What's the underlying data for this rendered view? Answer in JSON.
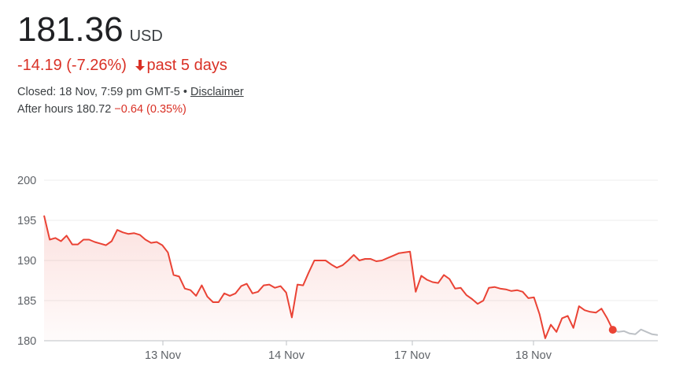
{
  "quote": {
    "price": "181.36",
    "currency": "USD",
    "change": "-14.19 (-7.26%)",
    "period": "past 5 days",
    "closed_label": "Closed: 18 Nov, 7:59 pm GMT-5",
    "separator": "•",
    "disclaimer": "Disclaimer",
    "after_hours_label": "After hours 180.72",
    "after_hours_change": "−0.64 (0.35%)"
  },
  "colors": {
    "line": "#ea4335",
    "after_hours_line": "#bdc1c6",
    "marker": "#ea4335",
    "down": "#d93025"
  },
  "chart_data": {
    "type": "line",
    "ylim": [
      180,
      200
    ],
    "yticks": [
      180,
      185,
      190,
      195,
      200
    ],
    "xticks": [
      "13 Nov",
      "14 Nov",
      "17 Nov",
      "18 Nov"
    ],
    "grid": true,
    "series": [
      {
        "values": [
          195.6,
          192.6,
          192.8,
          192.4,
          193.1,
          192.0,
          192.0,
          192.6,
          192.6,
          192.3,
          192.1,
          191.9,
          192.4,
          193.8,
          193.5,
          193.3,
          193.4,
          193.2,
          192.6,
          192.2,
          192.3,
          191.9,
          191.0,
          188.2,
          188.0,
          186.5,
          186.3,
          185.6,
          186.9,
          185.5,
          184.8,
          184.8,
          185.9,
          185.6,
          185.9,
          186.8,
          187.1,
          185.9,
          186.1,
          186.9,
          187.0,
          186.6,
          186.8,
          186.0,
          182.9,
          187.0,
          186.9,
          188.5,
          190.0,
          190.0,
          190.0,
          189.5,
          189.1,
          189.4,
          190.0,
          190.7,
          190.0,
          190.2,
          190.2,
          189.9,
          190.0,
          190.3,
          190.6,
          190.9,
          191.0,
          191.1,
          186.1,
          188.1,
          187.6,
          187.3,
          187.2,
          188.2,
          187.7,
          186.5,
          186.6,
          185.7,
          185.2,
          184.6,
          185.0,
          186.6,
          186.7,
          186.5,
          186.4,
          186.2,
          186.3,
          186.1,
          185.3,
          185.4,
          183.3,
          180.3,
          182.0,
          181.1,
          182.8,
          183.1,
          181.6,
          184.3,
          183.8,
          183.6,
          183.5,
          184.0,
          182.8,
          181.36
        ],
        "marker_last": true
      },
      {
        "values": [
          181.36,
          181.1,
          181.2,
          180.9,
          180.8,
          181.4,
          181.1,
          180.8,
          180.72
        ],
        "style": "after-hours"
      }
    ]
  }
}
